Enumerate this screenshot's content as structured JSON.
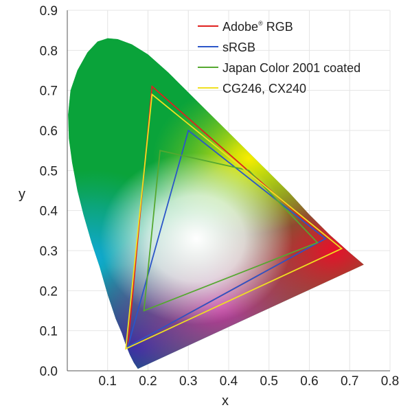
{
  "chart_data": {
    "type": "line",
    "title": "",
    "xlabel": "x",
    "ylabel": "y",
    "xlim": [
      0,
      0.8
    ],
    "ylim": [
      0,
      0.9
    ],
    "xticks": [
      "0.1",
      "0.2",
      "0.3",
      "0.4",
      "0.5",
      "0.6",
      "0.7",
      "0.8"
    ],
    "yticks": [
      "0.0",
      "0.1",
      "0.2",
      "0.3",
      "0.4",
      "0.5",
      "0.6",
      "0.7",
      "0.8",
      "0.9"
    ],
    "grid": true,
    "legend_position": "top-right",
    "spectral_locus": [
      [
        0.175,
        0.005
      ],
      [
        0.165,
        0.02
      ],
      [
        0.155,
        0.04
      ],
      [
        0.145,
        0.065
      ],
      [
        0.135,
        0.095
      ],
      [
        0.12,
        0.13
      ],
      [
        0.1,
        0.19
      ],
      [
        0.08,
        0.26
      ],
      [
        0.06,
        0.32
      ],
      [
        0.04,
        0.39
      ],
      [
        0.025,
        0.45
      ],
      [
        0.012,
        0.52
      ],
      [
        0.004,
        0.58
      ],
      [
        0.002,
        0.64
      ],
      [
        0.008,
        0.7
      ],
      [
        0.025,
        0.75
      ],
      [
        0.05,
        0.795
      ],
      [
        0.075,
        0.822
      ],
      [
        0.1,
        0.83
      ],
      [
        0.125,
        0.828
      ],
      [
        0.16,
        0.815
      ],
      [
        0.2,
        0.79
      ],
      [
        0.25,
        0.745
      ],
      [
        0.3,
        0.695
      ],
      [
        0.35,
        0.645
      ],
      [
        0.4,
        0.595
      ],
      [
        0.45,
        0.545
      ],
      [
        0.5,
        0.495
      ],
      [
        0.55,
        0.445
      ],
      [
        0.6,
        0.39
      ],
      [
        0.65,
        0.34
      ],
      [
        0.7,
        0.295
      ],
      [
        0.735,
        0.265
      ]
    ],
    "series": [
      {
        "name": "Adobe",
        "name_sup": "®",
        "name_suffix": "RGB",
        "color": "#e0201e",
        "points": [
          [
            0.64,
            0.33
          ],
          [
            0.21,
            0.71
          ],
          [
            0.15,
            0.06
          ]
        ]
      },
      {
        "name": "sRGB",
        "color": "#2a55c8",
        "points": [
          [
            0.64,
            0.33
          ],
          [
            0.3,
            0.6
          ],
          [
            0.15,
            0.06
          ]
        ]
      },
      {
        "name": "Japan Color 2001 coated",
        "color": "#55a830",
        "points": [
          [
            0.45,
            0.5
          ],
          [
            0.23,
            0.55
          ],
          [
            0.19,
            0.15
          ],
          [
            0.62,
            0.32
          ]
        ]
      },
      {
        "name": "CG246, CX240",
        "color": "#f0e020",
        "points": [
          [
            0.68,
            0.305
          ],
          [
            0.21,
            0.69
          ],
          [
            0.145,
            0.055
          ]
        ]
      }
    ]
  }
}
